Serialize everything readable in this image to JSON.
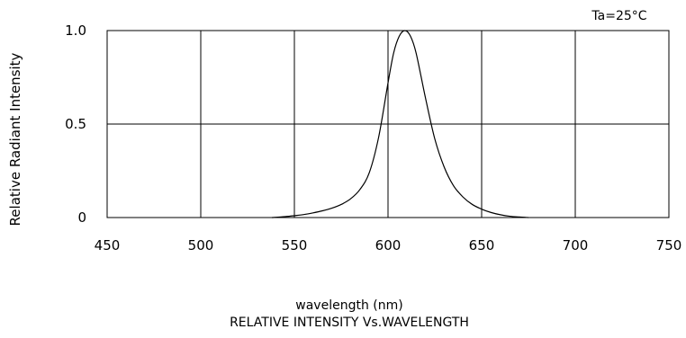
{
  "chart_data": {
    "type": "line",
    "title": "RELATIVE INTENSITY Vs.WAVELENGTH",
    "xlabel": "wavelength (nm)",
    "ylabel": "Relative Radiant Intensity",
    "annotation": "Ta=25°C",
    "xlim": [
      450,
      750
    ],
    "ylim": [
      0,
      1.0
    ],
    "grid": true,
    "xticks": [
      450,
      500,
      550,
      600,
      650,
      700,
      750
    ],
    "xtick_labels": [
      "450",
      "500",
      "550",
      "600",
      "650",
      "700",
      "750"
    ],
    "yticks": [
      0,
      0.5,
      1.0
    ],
    "ytick_labels": [
      "0",
      "0.5",
      "1.0"
    ],
    "series": [
      {
        "x": [
          538,
          545,
          550,
          555,
          560,
          565,
          570,
          575,
          580,
          585,
          590,
          595,
          600,
          603,
          606,
          609,
          612,
          615,
          620,
          625,
          630,
          635,
          640,
          645,
          650,
          655,
          660,
          665,
          670,
          675
        ],
        "y": [
          0.0,
          0.005,
          0.01,
          0.016,
          0.025,
          0.036,
          0.05,
          0.07,
          0.1,
          0.15,
          0.24,
          0.43,
          0.72,
          0.88,
          0.97,
          1.0,
          0.97,
          0.88,
          0.64,
          0.42,
          0.27,
          0.17,
          0.11,
          0.07,
          0.045,
          0.027,
          0.015,
          0.007,
          0.003,
          0.0
        ]
      }
    ]
  }
}
